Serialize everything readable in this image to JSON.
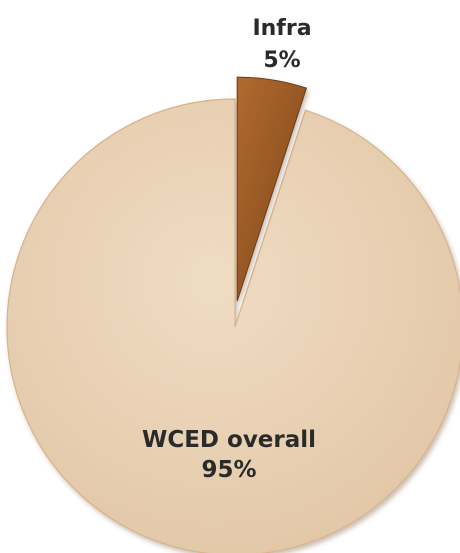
{
  "chart_data": {
    "type": "pie",
    "title": "",
    "slices": [
      {
        "label": "Infra",
        "value": 5,
        "value_label": "5%",
        "color": "#9a5a26",
        "exploded": true
      },
      {
        "label": "WCED overall",
        "value": 95,
        "value_label": "95%",
        "color": "#ead3b8",
        "exploded": false
      }
    ],
    "legend": "none",
    "start_angle": "12 o'clock, clockwise"
  }
}
